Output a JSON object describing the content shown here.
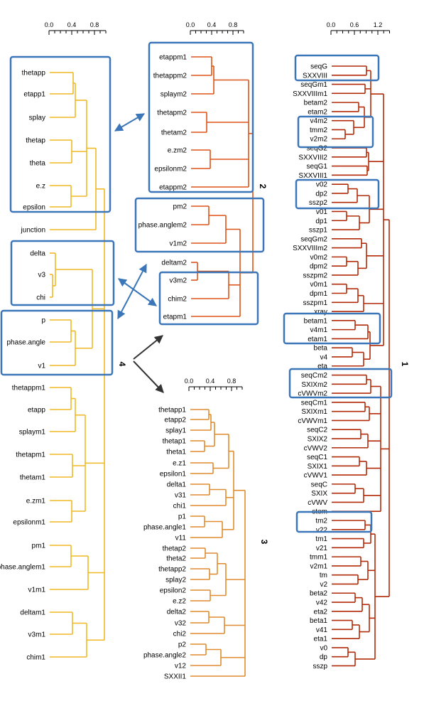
{
  "colors": {
    "panel1": "#b22a08",
    "panel2": "#dd5418",
    "panel3": "#e08c30",
    "panel4": "#f2b926",
    "highlight": "#3a76b8",
    "arrow_dark": "#333333"
  },
  "axes": {
    "p2": [
      "0.0",
      "0.4",
      "0.8"
    ],
    "p4": [
      "0.0",
      "0.4",
      "0.8"
    ],
    "p3": [
      "0.0",
      "0.4",
      "0.8"
    ],
    "p1": [
      "0.0",
      "0.6",
      "1.2"
    ]
  },
  "panel_titles": {
    "p1": "1",
    "p2": "2",
    "p3": "3",
    "p4": "4"
  },
  "panel4_leaves": [
    "thetapp",
    "etapp1",
    "splay",
    "thetap",
    "theta",
    "e.z",
    "epsilon",
    "junction",
    "delta",
    "v3",
    "chi",
    "p",
    "phase.angle",
    "v1",
    "thetappm1",
    "etapp",
    "splaym1",
    "thetapm1",
    "thetam1",
    "e.zm1",
    "epsilonm1",
    "pm1",
    "phase.anglem1",
    "v1m1",
    "deltam1",
    "v3m1",
    "chim1"
  ],
  "panel2_leaves": [
    "etappm1",
    "thetappm2",
    "splaym2",
    "thetapm2",
    "thetam2",
    "e.zm2",
    "epsilonm2",
    "etappm2",
    "pm2",
    "phase.anglem2",
    "v1m2",
    "deltam2",
    "v3m2",
    "chim2",
    "etapm1"
  ],
  "panel3_leaves": [
    "thetapp1",
    "etapp2",
    "splay1",
    "thetap1",
    "theta1",
    "e.z1",
    "epsilon1",
    "delta1",
    "v31",
    "chi1",
    "p1",
    "phase.angle1",
    "v11",
    "thetap2",
    "theta2",
    "thetapp2",
    "splay2",
    "epsilon2",
    "e.z2",
    "delta2",
    "v32",
    "chi2",
    "p2",
    "phase.angle2",
    "v12",
    "SXXII1"
  ],
  "panel1_leaves": [
    "seqG",
    "SXXVIII",
    "seqGm1",
    "SXXVIIIm1",
    "betam2",
    "etam2",
    "v4m2",
    "tmm2",
    "v2m2",
    "seqG2",
    "SXXVIII2",
    "seqG1",
    "SXXVIII1",
    "v02",
    "dp2",
    "sszp2",
    "v01",
    "dp1",
    "sszp1",
    "seqGm2",
    "SXXVIIIm2",
    "v0m2",
    "dpm2",
    "sszpm2",
    "v0m1",
    "dpm1",
    "sszpm1",
    "xray",
    "betam1",
    "v4m1",
    "etam1",
    "beta",
    "v4",
    "eta",
    "seqCm2",
    "SXIXm2",
    "cVWVm2",
    "seqCm1",
    "SXIXm1",
    "cVWVm1",
    "seqC2",
    "SXIX2",
    "cVWV2",
    "seqC1",
    "SXIX1",
    "cVWV1",
    "seqC",
    "SXIX",
    "cVWV",
    "stem",
    "tm2",
    "v22",
    "tm1",
    "v21",
    "tmm1",
    "v2m1",
    "tm",
    "v2",
    "beta2",
    "v42",
    "eta2",
    "beta1",
    "v41",
    "eta1",
    "v0",
    "dp",
    "sszp"
  ]
}
